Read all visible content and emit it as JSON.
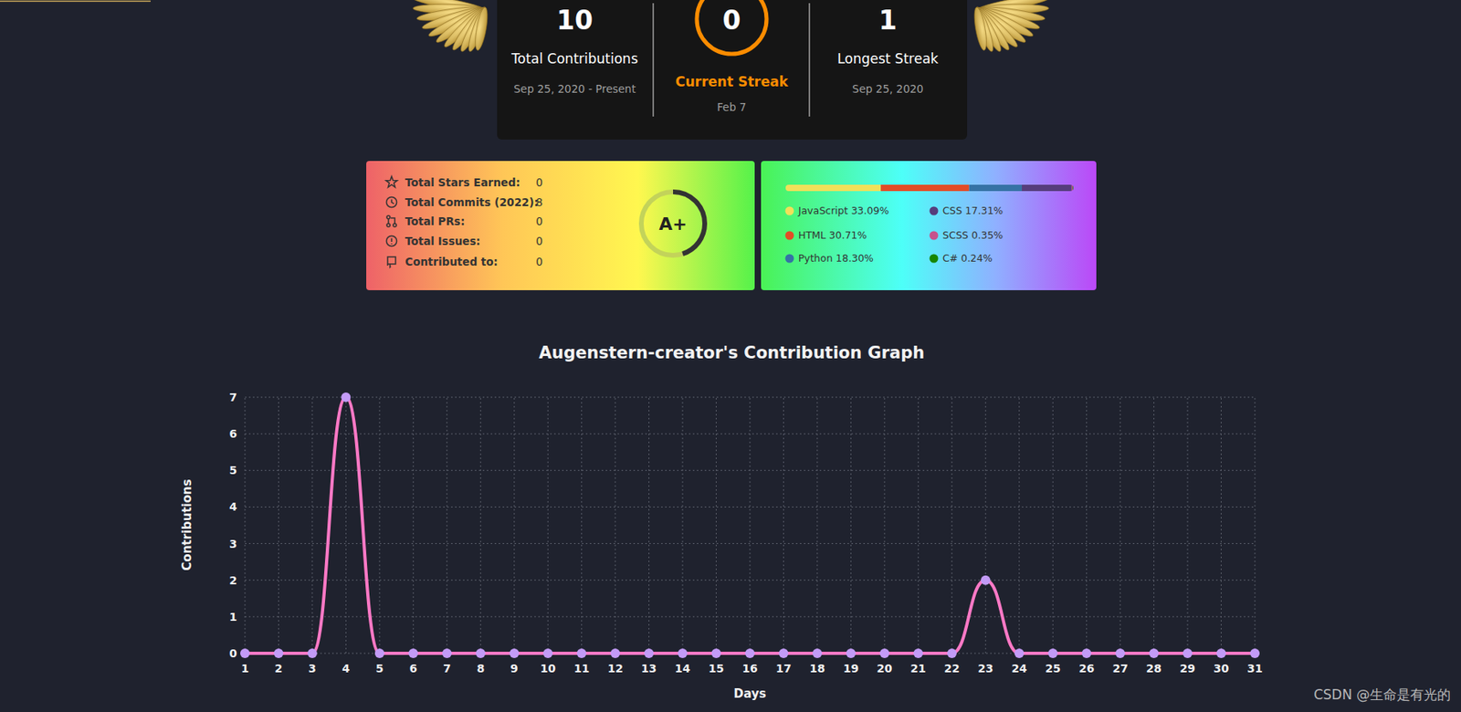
{
  "streak_card": {
    "total_contributions": {
      "value": 10,
      "label": "Total Contributions",
      "dates": "Sep 25, 2020 - Present"
    },
    "current_streak": {
      "value": 0,
      "label": "Current Streak",
      "dates": "Feb 7"
    },
    "longest_streak": {
      "value": 1,
      "label": "Longest Streak",
      "dates": "Sep 25, 2020"
    }
  },
  "stats_card": {
    "rows": [
      {
        "label": "Total Stars Earned:",
        "value": 0
      },
      {
        "label": "Total Commits (2022):",
        "value": 8
      },
      {
        "label": "Total PRs:",
        "value": 0
      },
      {
        "label": "Total Issues:",
        "value": 0
      },
      {
        "label": "Contributed to:",
        "value": 0
      }
    ],
    "rank": "A+"
  },
  "languages_card": {
    "languages": [
      {
        "label": "JavaScript 33.09%",
        "percent": 33.09,
        "color": "#f1e05a"
      },
      {
        "label": "HTML 30.71%",
        "percent": 30.71,
        "color": "#e34c26"
      },
      {
        "label": "Python 18.30%",
        "percent": 18.3,
        "color": "#3572a5"
      },
      {
        "label": "CSS 17.31%",
        "percent": 17.31,
        "color": "#563d7c"
      },
      {
        "label": "SCSS 0.35%",
        "percent": 0.35,
        "color": "#c6538c"
      },
      {
        "label": "C# 0.24%",
        "percent": 0.24,
        "color": "#178600"
      }
    ]
  },
  "chart_data": {
    "type": "line",
    "title": "Augenstern-creator's Contribution Graph",
    "x_label": "Days",
    "y_label": "Contributions",
    "x": [
      1,
      2,
      3,
      4,
      5,
      6,
      7,
      8,
      9,
      10,
      11,
      12,
      13,
      14,
      15,
      16,
      17,
      18,
      19,
      20,
      21,
      22,
      23,
      24,
      25,
      26,
      27,
      28,
      29,
      30,
      31
    ],
    "values": [
      0,
      0,
      0,
      7,
      0,
      0,
      0,
      0,
      0,
      0,
      0,
      0,
      0,
      0,
      0,
      0,
      0,
      0,
      0,
      0,
      0,
      0,
      2,
      0,
      0,
      0,
      0,
      0,
      0,
      0,
      0
    ],
    "xlim": [
      1,
      31
    ],
    "ylim": [
      0,
      7
    ],
    "xticks": [
      1,
      2,
      3,
      4,
      5,
      6,
      7,
      8,
      9,
      10,
      11,
      12,
      13,
      14,
      15,
      16,
      17,
      18,
      19,
      20,
      21,
      22,
      23,
      24,
      25,
      26,
      27,
      28,
      29,
      30,
      31
    ],
    "yticks": [
      0,
      1,
      2,
      3,
      4,
      5,
      6,
      7
    ],
    "grid": true,
    "color": "#ff79c6",
    "marker": "circle"
  },
  "watermark": "CSDN @生命是有光的"
}
